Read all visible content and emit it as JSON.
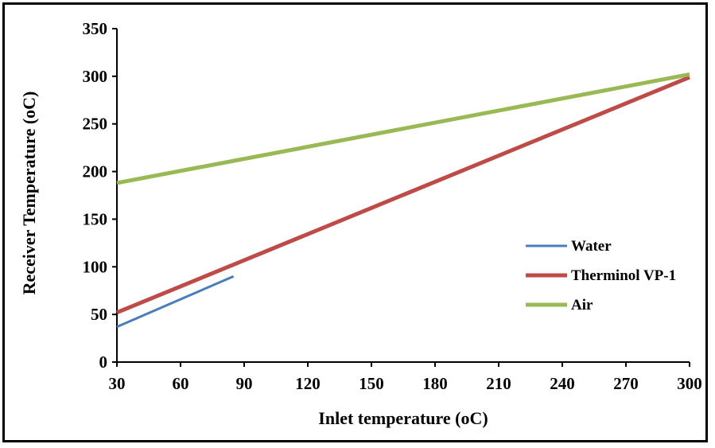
{
  "chart_data": {
    "type": "line",
    "xlabel": "Inlet temperature  (oC)",
    "ylabel": "Receiver Temperature  (oC)",
    "xlim": [
      30,
      300
    ],
    "ylim": [
      0,
      350
    ],
    "x_ticks": [
      30,
      60,
      90,
      120,
      150,
      180,
      210,
      240,
      270,
      300
    ],
    "y_ticks": [
      0,
      50,
      100,
      150,
      200,
      250,
      300,
      350
    ],
    "grid": false,
    "legend_position": "right-center",
    "series": [
      {
        "name": "Water",
        "color": "#4a7ebb",
        "x": [
          30,
          85
        ],
        "y": [
          37,
          90
        ]
      },
      {
        "name": "Therminol VP-1",
        "color": "#be4b48",
        "x": [
          30,
          300
        ],
        "y": [
          52,
          299
        ]
      },
      {
        "name": "Air",
        "color": "#98b954",
        "x": [
          30,
          300
        ],
        "y": [
          188,
          302
        ]
      }
    ]
  }
}
